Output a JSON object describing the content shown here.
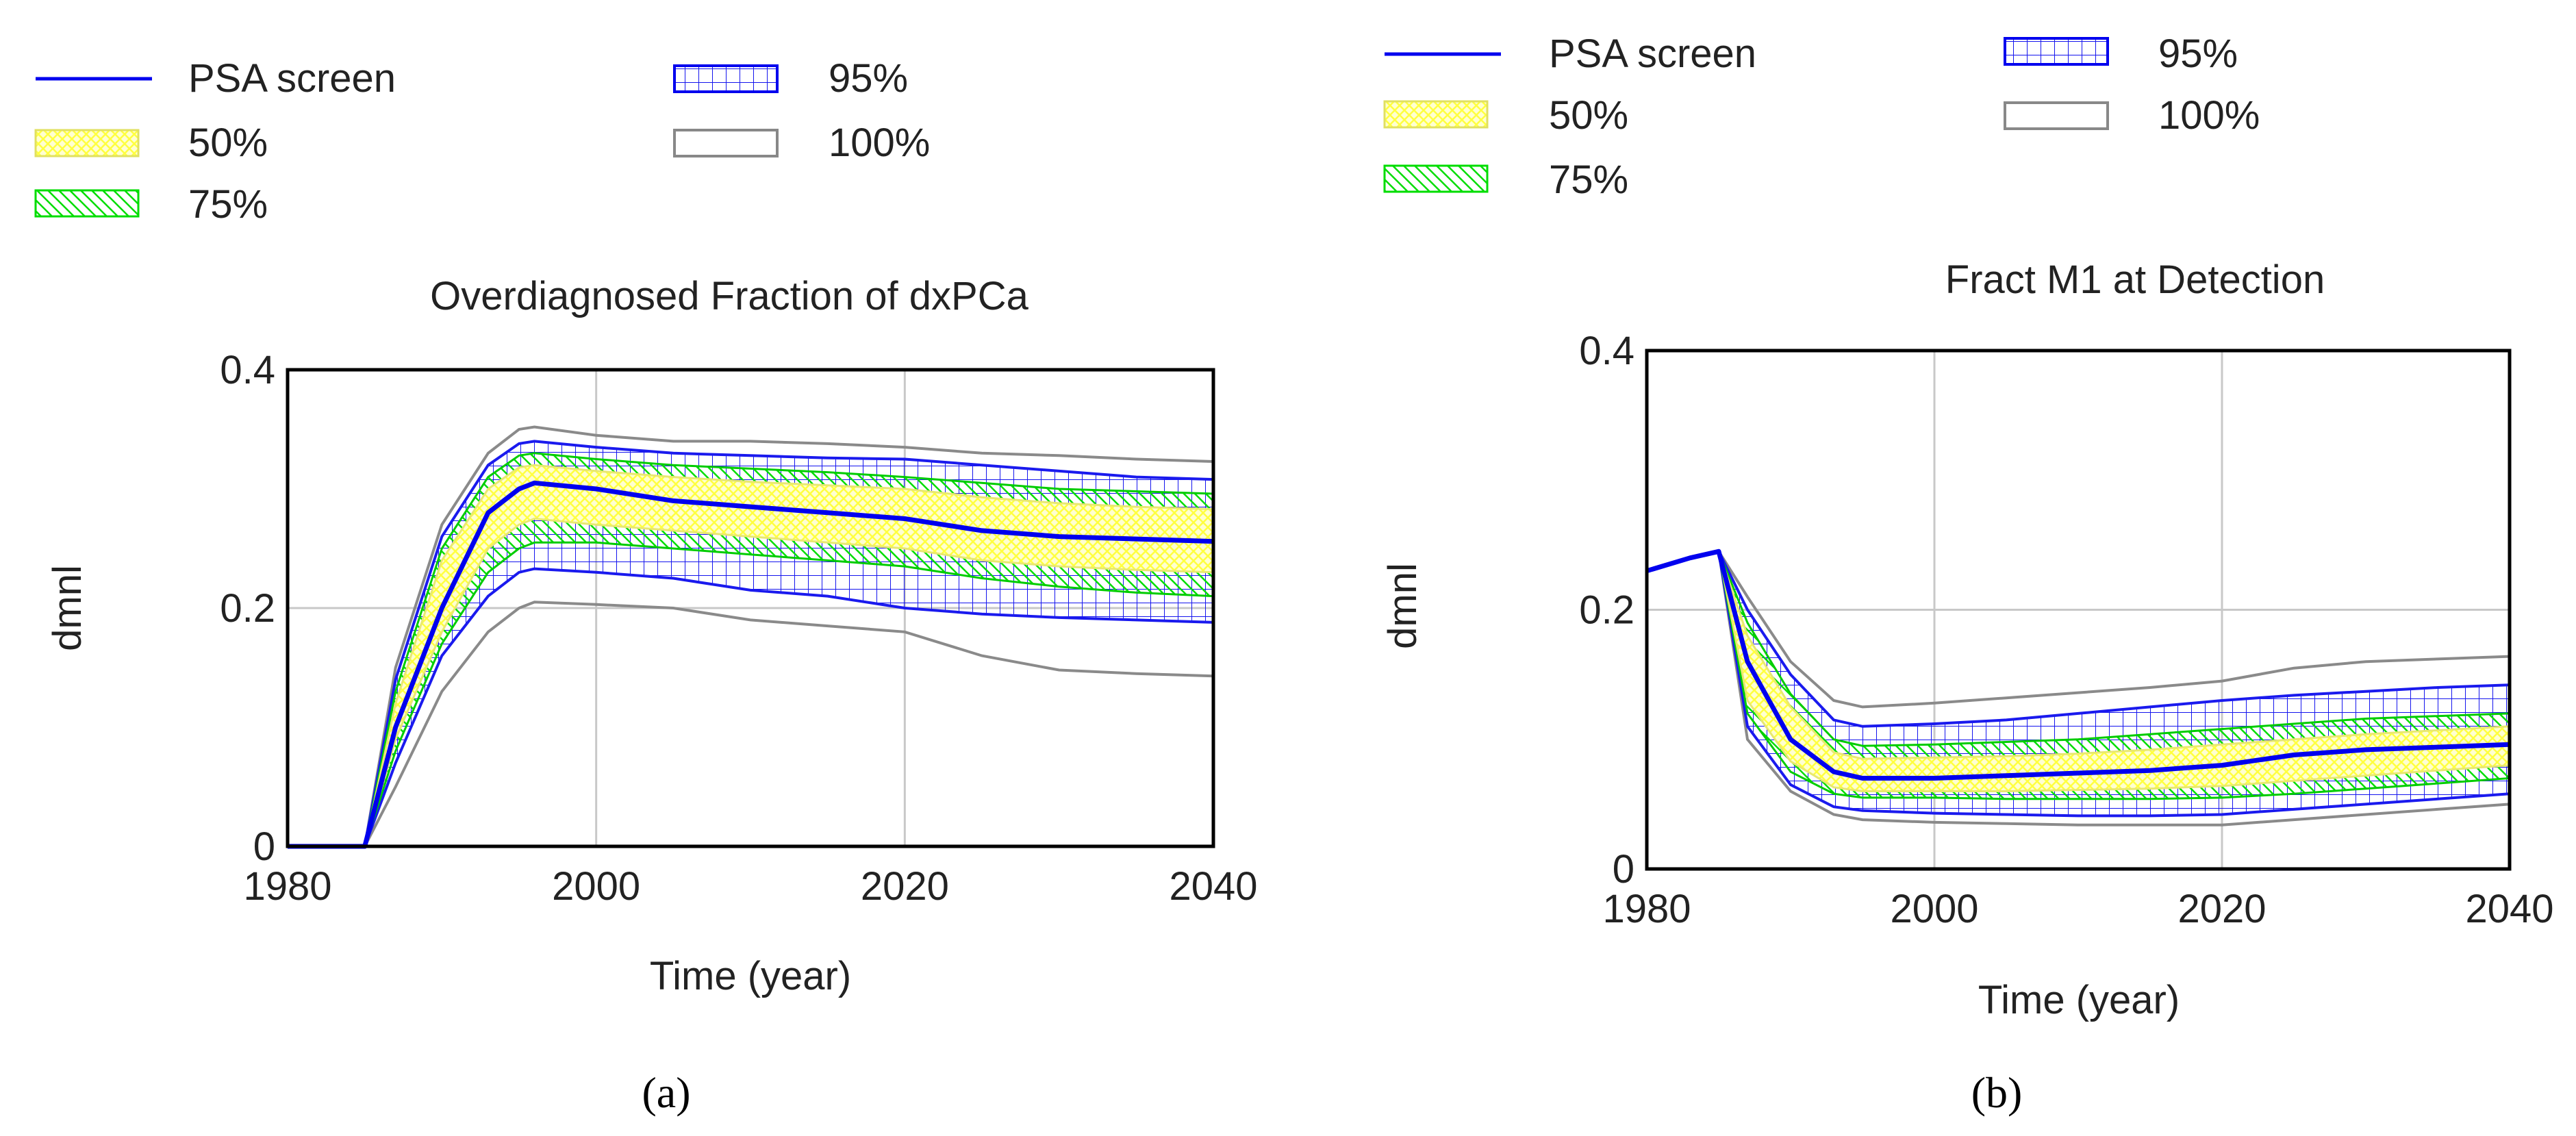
{
  "chart_data": [
    {
      "type": "line",
      "panel_label": "(a)",
      "title": "Overdiagnosed Fraction of dxPCa",
      "xlabel": "Time (year)",
      "ylabel": "dmnl",
      "xlim": [
        1980,
        2040
      ],
      "ylim": [
        0,
        0.4
      ],
      "xticks": [
        "1980",
        "2000",
        "2020",
        "2040"
      ],
      "yticks": [
        "0",
        "0.2",
        "0.4"
      ],
      "grid": true,
      "legend": {
        "placement": "top",
        "entries": [
          {
            "label": "PSA screen",
            "kind": "line",
            "color": "#0000ee"
          },
          {
            "label": "50%",
            "kind": "band",
            "color": "#ffff80"
          },
          {
            "label": "75%",
            "kind": "band",
            "color": "#00ee00"
          },
          {
            "label": "95%",
            "kind": "band",
            "color": "#0000ee"
          },
          {
            "label": "100%",
            "kind": "band",
            "color": "#808080"
          }
        ]
      },
      "x": [
        1980,
        1985,
        1987,
        1990,
        1993,
        1995,
        1996,
        2000,
        2005,
        2010,
        2015,
        2020,
        2025,
        2030,
        2035,
        2040
      ],
      "series": [
        {
          "name": "PSA screen",
          "values": [
            0,
            0,
            0.1,
            0.2,
            0.28,
            0.3,
            0.305,
            0.3,
            0.29,
            0.285,
            0.28,
            0.275,
            0.265,
            0.26,
            0.258,
            0.256
          ]
        }
      ],
      "bands": [
        {
          "name": "100%",
          "lower": [
            0,
            0,
            0.05,
            0.13,
            0.18,
            0.2,
            0.205,
            0.203,
            0.2,
            0.19,
            0.185,
            0.18,
            0.16,
            0.148,
            0.145,
            0.143
          ],
          "upper": [
            0,
            0,
            0.15,
            0.27,
            0.33,
            0.35,
            0.352,
            0.345,
            0.34,
            0.34,
            0.338,
            0.335,
            0.33,
            0.328,
            0.325,
            0.323
          ]
        },
        {
          "name": "95%",
          "lower": [
            0,
            0,
            0.07,
            0.16,
            0.21,
            0.23,
            0.233,
            0.23,
            0.225,
            0.215,
            0.21,
            0.2,
            0.195,
            0.192,
            0.19,
            0.188
          ],
          "upper": [
            0,
            0,
            0.14,
            0.26,
            0.32,
            0.338,
            0.34,
            0.335,
            0.33,
            0.328,
            0.326,
            0.325,
            0.32,
            0.315,
            0.31,
            0.308
          ]
        },
        {
          "name": "75%",
          "lower": [
            0,
            0,
            0.08,
            0.17,
            0.23,
            0.25,
            0.255,
            0.255,
            0.25,
            0.245,
            0.24,
            0.235,
            0.225,
            0.218,
            0.213,
            0.21
          ],
          "upper": [
            0,
            0,
            0.13,
            0.25,
            0.31,
            0.328,
            0.33,
            0.325,
            0.32,
            0.317,
            0.314,
            0.31,
            0.305,
            0.3,
            0.298,
            0.296
          ]
        },
        {
          "name": "50%",
          "lower": [
            0,
            0,
            0.09,
            0.18,
            0.25,
            0.27,
            0.275,
            0.27,
            0.265,
            0.26,
            0.255,
            0.25,
            0.24,
            0.235,
            0.232,
            0.23
          ],
          "upper": [
            0,
            0,
            0.12,
            0.24,
            0.3,
            0.318,
            0.32,
            0.315,
            0.31,
            0.306,
            0.303,
            0.3,
            0.293,
            0.288,
            0.285,
            0.283
          ]
        }
      ]
    },
    {
      "type": "line",
      "panel_label": "(b)",
      "title": "Fract M1 at Detection",
      "xlabel": "Time (year)",
      "ylabel": "dmnl",
      "xlim": [
        1980,
        2040
      ],
      "ylim": [
        0,
        0.4
      ],
      "xticks": [
        "1980",
        "2000",
        "2020",
        "2040"
      ],
      "yticks": [
        "0",
        "0.2",
        "0.4"
      ],
      "grid": true,
      "legend": {
        "placement": "top",
        "entries": [
          {
            "label": "PSA screen",
            "kind": "line",
            "color": "#0000ee"
          },
          {
            "label": "50%",
            "kind": "band",
            "color": "#ffff80"
          },
          {
            "label": "75%",
            "kind": "band",
            "color": "#00ee00"
          },
          {
            "label": "95%",
            "kind": "band",
            "color": "#0000ee"
          },
          {
            "label": "100%",
            "kind": "band",
            "color": "#808080"
          }
        ]
      },
      "x": [
        1980,
        1983,
        1985,
        1987,
        1990,
        1993,
        1995,
        2000,
        2005,
        2010,
        2015,
        2020,
        2025,
        2030,
        2035,
        2040
      ],
      "series": [
        {
          "name": "PSA screen",
          "values": [
            0.23,
            0.24,
            0.245,
            0.16,
            0.1,
            0.075,
            0.07,
            0.07,
            0.072,
            0.074,
            0.076,
            0.08,
            0.088,
            0.092,
            0.094,
            0.096
          ]
        }
      ],
      "bands": [
        {
          "name": "100%",
          "lower": [
            0.23,
            0.24,
            0.245,
            0.1,
            0.06,
            0.042,
            0.038,
            0.036,
            0.035,
            0.034,
            0.034,
            0.034,
            0.038,
            0.042,
            0.046,
            0.05
          ],
          "upper": [
            0.23,
            0.24,
            0.245,
            0.21,
            0.16,
            0.13,
            0.125,
            0.128,
            0.132,
            0.136,
            0.14,
            0.145,
            0.155,
            0.16,
            0.162,
            0.164
          ]
        },
        {
          "name": "95%",
          "lower": [
            0.23,
            0.24,
            0.245,
            0.11,
            0.065,
            0.048,
            0.045,
            0.043,
            0.042,
            0.041,
            0.041,
            0.042,
            0.046,
            0.05,
            0.054,
            0.058
          ],
          "upper": [
            0.23,
            0.24,
            0.245,
            0.2,
            0.15,
            0.115,
            0.11,
            0.112,
            0.115,
            0.12,
            0.125,
            0.13,
            0.134,
            0.137,
            0.14,
            0.142
          ]
        },
        {
          "name": "75%",
          "lower": [
            0.23,
            0.24,
            0.245,
            0.12,
            0.075,
            0.058,
            0.055,
            0.055,
            0.054,
            0.054,
            0.054,
            0.055,
            0.058,
            0.062,
            0.066,
            0.07
          ],
          "upper": [
            0.23,
            0.24,
            0.245,
            0.19,
            0.135,
            0.1,
            0.095,
            0.096,
            0.098,
            0.1,
            0.104,
            0.108,
            0.112,
            0.116,
            0.118,
            0.12
          ]
        },
        {
          "name": "50%",
          "lower": [
            0.23,
            0.24,
            0.245,
            0.13,
            0.083,
            0.063,
            0.06,
            0.06,
            0.06,
            0.061,
            0.062,
            0.064,
            0.068,
            0.072,
            0.076,
            0.08
          ],
          "upper": [
            0.23,
            0.24,
            0.245,
            0.18,
            0.125,
            0.09,
            0.085,
            0.086,
            0.087,
            0.089,
            0.092,
            0.096,
            0.1,
            0.104,
            0.107,
            0.11
          ]
        }
      ]
    }
  ]
}
